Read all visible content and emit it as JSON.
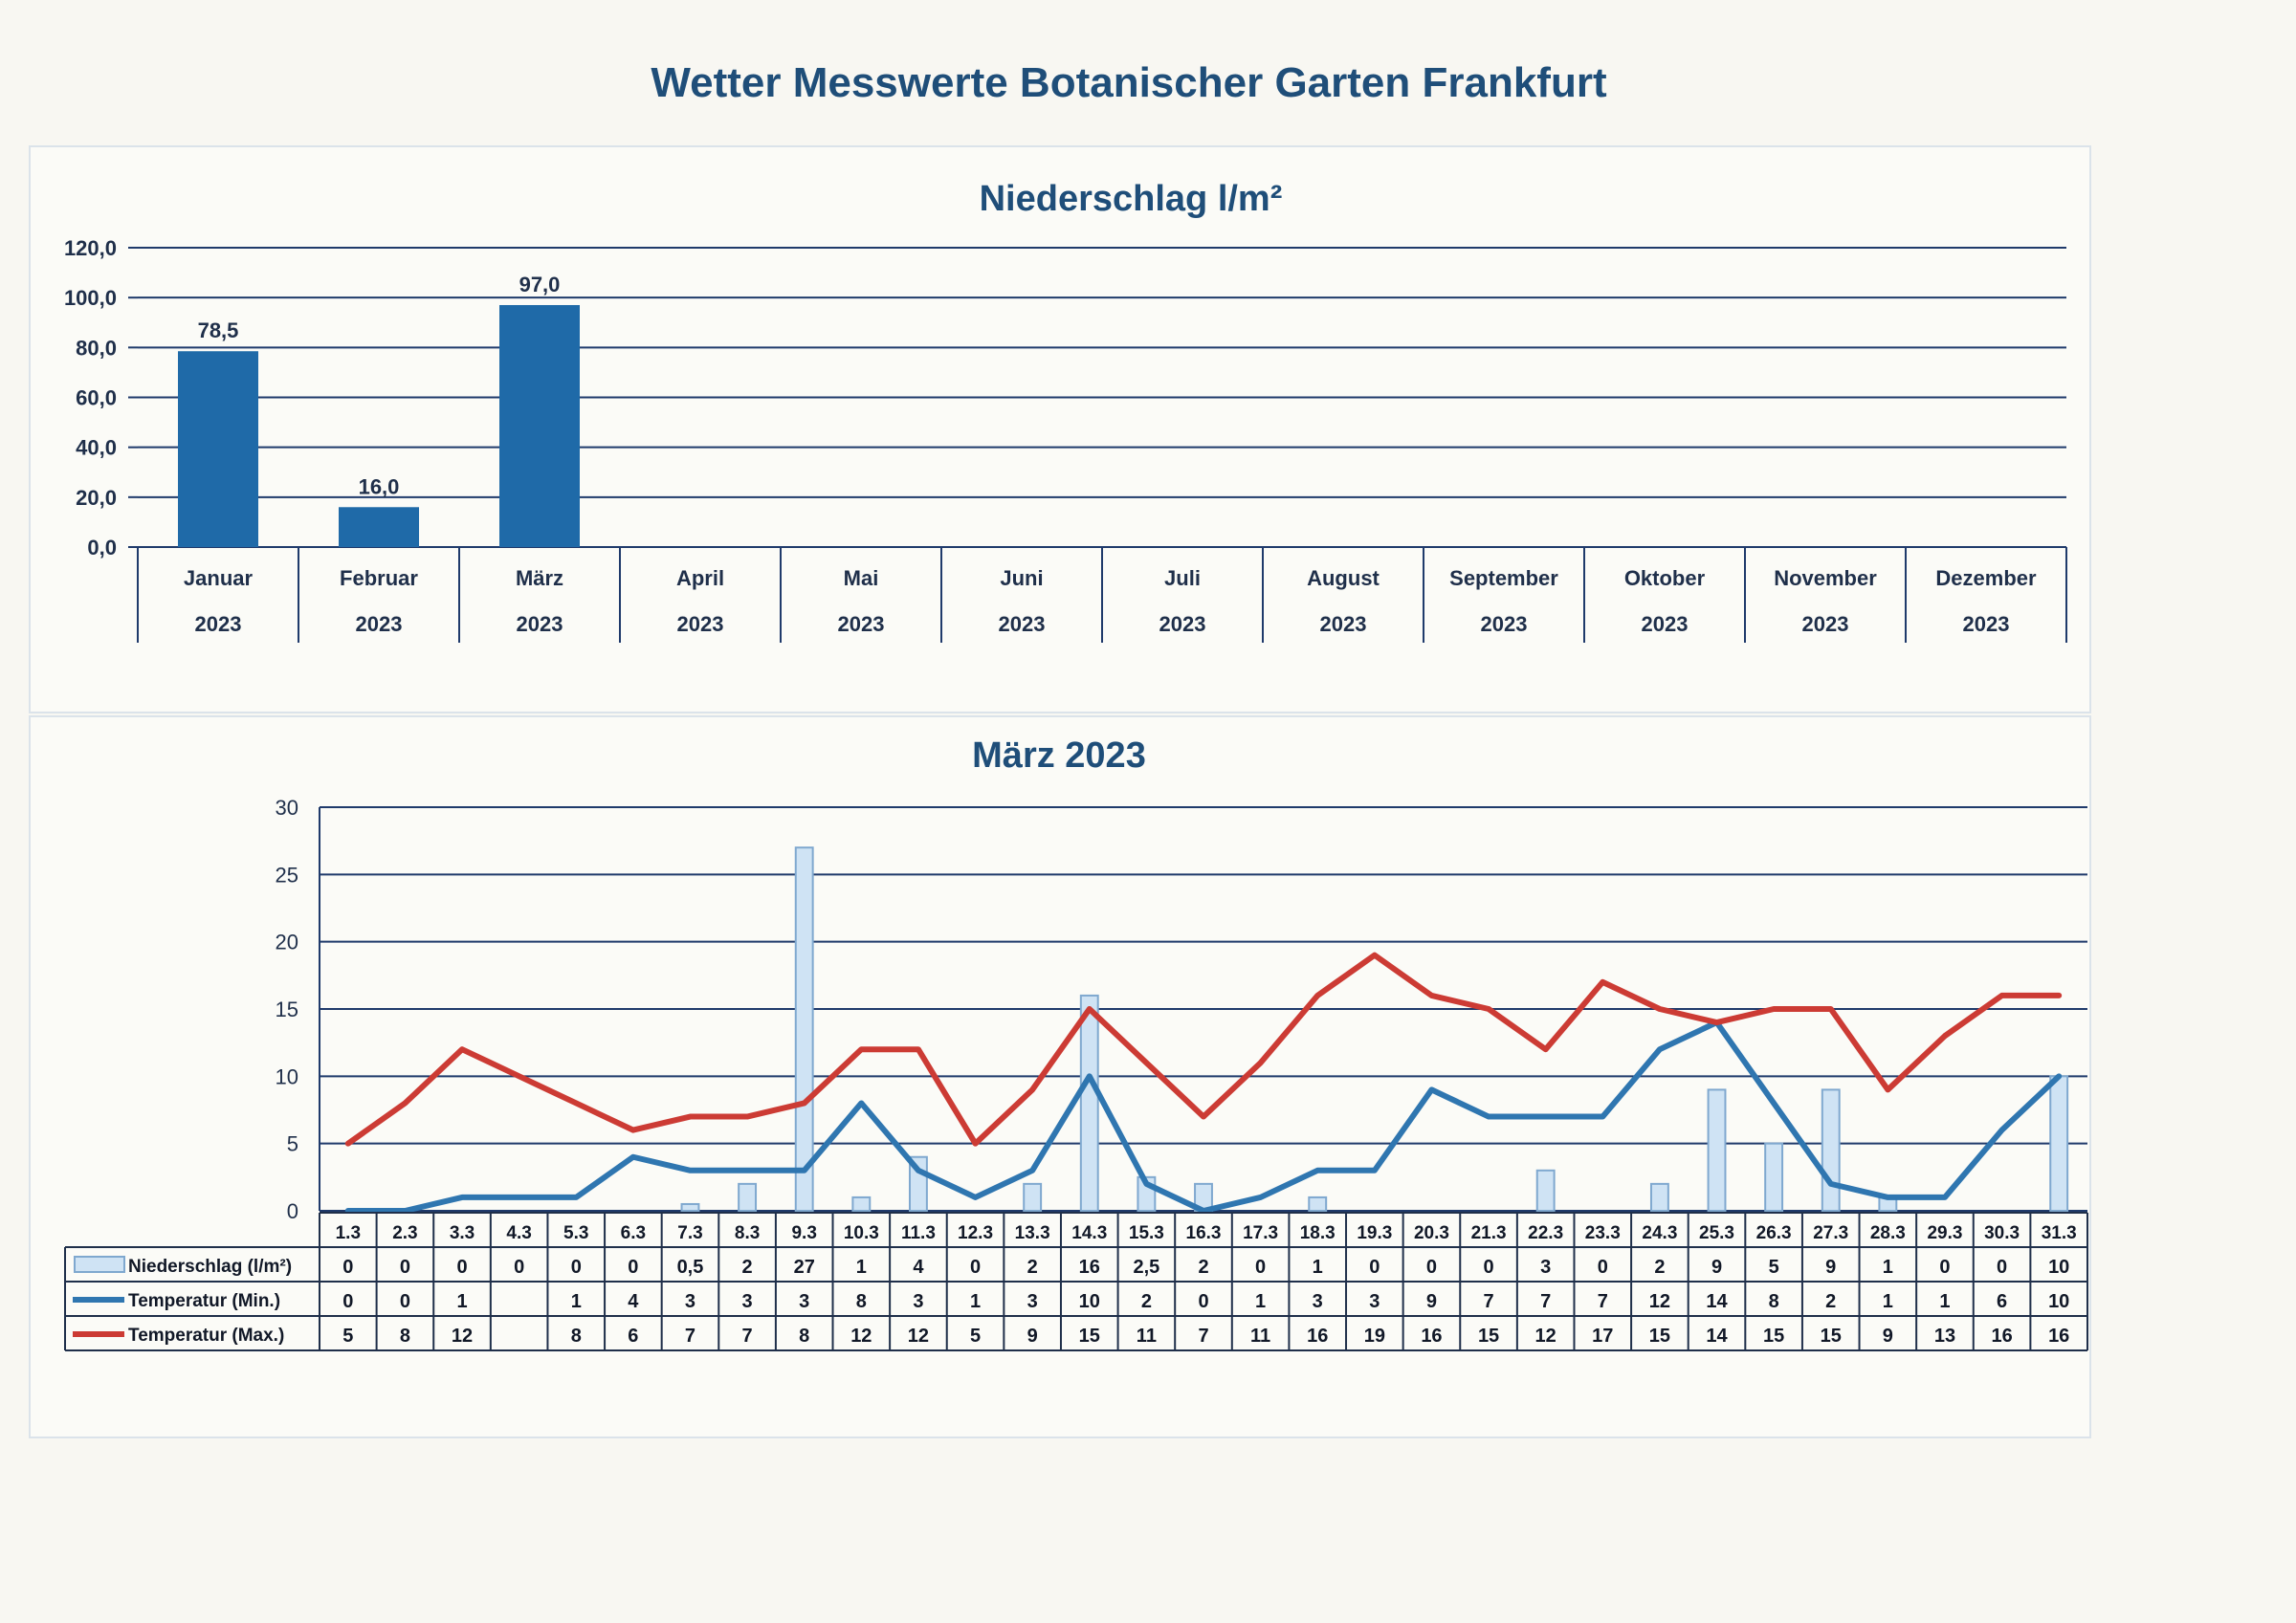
{
  "page_title": "Wetter Messwerte Botanischer Garten Frankfurt",
  "chart_data": [
    {
      "type": "bar",
      "title": "Niederschlag l/m²",
      "categories": [
        "Januar",
        "Februar",
        "März",
        "April",
        "Mai",
        "Juni",
        "Juli",
        "August",
        "September",
        "Oktober",
        "November",
        "Dezember"
      ],
      "category_years": [
        "2023",
        "2023",
        "2023",
        "2023",
        "2023",
        "2023",
        "2023",
        "2023",
        "2023",
        "2023",
        "2023",
        "2023"
      ],
      "values": [
        78.5,
        16.0,
        97.0,
        null,
        null,
        null,
        null,
        null,
        null,
        null,
        null,
        null
      ],
      "value_labels": [
        "78,5",
        "16,0",
        "97,0",
        "",
        "",
        "",
        "",
        "",
        "",
        "",
        "",
        ""
      ],
      "ylim": [
        0,
        120
      ],
      "yticks": [
        0,
        20,
        40,
        60,
        80,
        100,
        120
      ],
      "ytick_labels": [
        "0,0",
        "20,0",
        "40,0",
        "60,0",
        "80,0",
        "100,0",
        "120,0"
      ],
      "grid": true,
      "colors": {
        "bar": "#1f6aa8",
        "grid": "#1f3a6b",
        "title": "#1f4e79"
      }
    },
    {
      "type": "bar+line",
      "title": "März 2023",
      "categories": [
        "1.3",
        "2.3",
        "3.3",
        "4.3",
        "5.3",
        "6.3",
        "7.3",
        "8.3",
        "9.3",
        "10.3",
        "11.3",
        "12.3",
        "13.3",
        "14.3",
        "15.3",
        "16.3",
        "17.3",
        "18.3",
        "19.3",
        "20.3",
        "21.3",
        "22.3",
        "23.3",
        "24.3",
        "25.3",
        "26.3",
        "27.3",
        "28.3",
        "29.3",
        "30.3",
        "31.3"
      ],
      "ylim": [
        0,
        30
      ],
      "yticks": [
        0,
        5,
        10,
        15,
        20,
        25,
        30
      ],
      "grid": true,
      "legend_placement": "data-table-left",
      "series": [
        {
          "name": "Niederschlag (l/m²)",
          "kind": "bar",
          "color": "#cfe3f4",
          "values": [
            0,
            0,
            0,
            0,
            0,
            0,
            0.5,
            2,
            27,
            1,
            4,
            0,
            2,
            16,
            2.5,
            2,
            0,
            1,
            0,
            0,
            0,
            3,
            0,
            2,
            9,
            5,
            9,
            1,
            0,
            0,
            10
          ],
          "labels": [
            "0",
            "0",
            "0",
            "0",
            "0",
            "0",
            "0,5",
            "2",
            "27",
            "1",
            "4",
            "0",
            "2",
            "16",
            "2,5",
            "2",
            "0",
            "1",
            "0",
            "0",
            "0",
            "3",
            "0",
            "2",
            "9",
            "5",
            "9",
            "1",
            "0",
            "0",
            "10"
          ]
        },
        {
          "name": "Temperatur (Min.)",
          "kind": "line",
          "color": "#2f76b0",
          "values": [
            0,
            0,
            1,
            1,
            1,
            4,
            3,
            3,
            3,
            8,
            3,
            1,
            3,
            10,
            2,
            0,
            1,
            3,
            3,
            9,
            7,
            7,
            7,
            12,
            14,
            8,
            2,
            1,
            1,
            6,
            10
          ],
          "labels": [
            "0",
            "0",
            "1",
            "",
            "1",
            "4",
            "3",
            "3",
            "3",
            "8",
            "3",
            "1",
            "3",
            "10",
            "2",
            "0",
            "1",
            "3",
            "3",
            "9",
            "7",
            "7",
            "7",
            "12",
            "14",
            "8",
            "2",
            "1",
            "1",
            "6",
            "10"
          ]
        },
        {
          "name": "Temperatur (Max.)",
          "kind": "line",
          "color": "#cc3b34",
          "values": [
            5,
            8,
            12,
            10,
            8,
            6,
            7,
            7,
            8,
            12,
            12,
            5,
            9,
            15,
            11,
            7,
            11,
            16,
            19,
            16,
            15,
            12,
            17,
            15,
            14,
            15,
            15,
            9,
            13,
            16,
            16
          ],
          "labels": [
            "5",
            "8",
            "12",
            "",
            "8",
            "6",
            "7",
            "7",
            "8",
            "12",
            "12",
            "5",
            "9",
            "15",
            "11",
            "7",
            "11",
            "16",
            "19",
            "16",
            "15",
            "12",
            "17",
            "15",
            "14",
            "15",
            "15",
            "9",
            "13",
            "16",
            "16"
          ]
        }
      ]
    }
  ]
}
